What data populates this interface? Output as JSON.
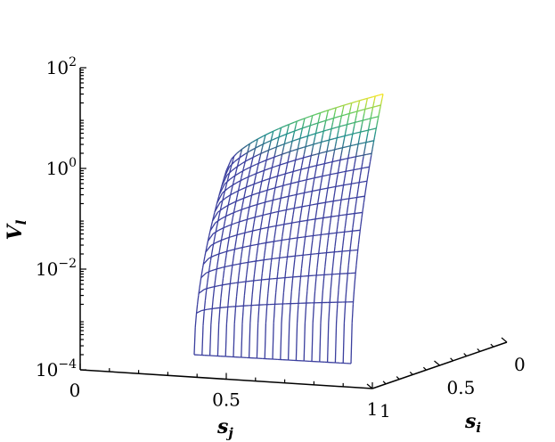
{
  "chart_data": {
    "type": "surface-3d-wireframe",
    "title": "",
    "zlabel_main": "V",
    "zlabel_sub": "l",
    "xlabel_main": "s",
    "xlabel_sub": "j",
    "ylabel_main": "s",
    "ylabel_sub": "i",
    "z_scale": "log",
    "zlim": [
      0.0001,
      100
    ],
    "z_ticks": [
      {
        "base": "10",
        "exp": "2",
        "value": 100
      },
      {
        "base": "10",
        "exp": "0",
        "value": 1
      },
      {
        "base": "10",
        "exp": "−2",
        "value": 0.01
      },
      {
        "base": "10",
        "exp": "−4",
        "value": 0.0001
      }
    ],
    "x_ticks": [
      "0",
      "0.5",
      "1"
    ],
    "y_ticks": [
      "0",
      "0.5",
      "1"
    ],
    "x_range": [
      0,
      1
    ],
    "y_range": [
      0,
      1
    ],
    "colormap": "viridis",
    "grid": "off",
    "surface": {
      "sj_min": 0.5,
      "sj_max": 1.0,
      "si_min": 0.0,
      "si_max": 1.0,
      "corner_values": {
        "sj_0.5_si_1": 0.9,
        "sj_0.5_si_0": 0.0003,
        "sj_1_si_1": 30,
        "sj_1_si_0": 0.0002
      },
      "mesh_lines_sj": 20,
      "mesh_lines_si": 14
    }
  }
}
